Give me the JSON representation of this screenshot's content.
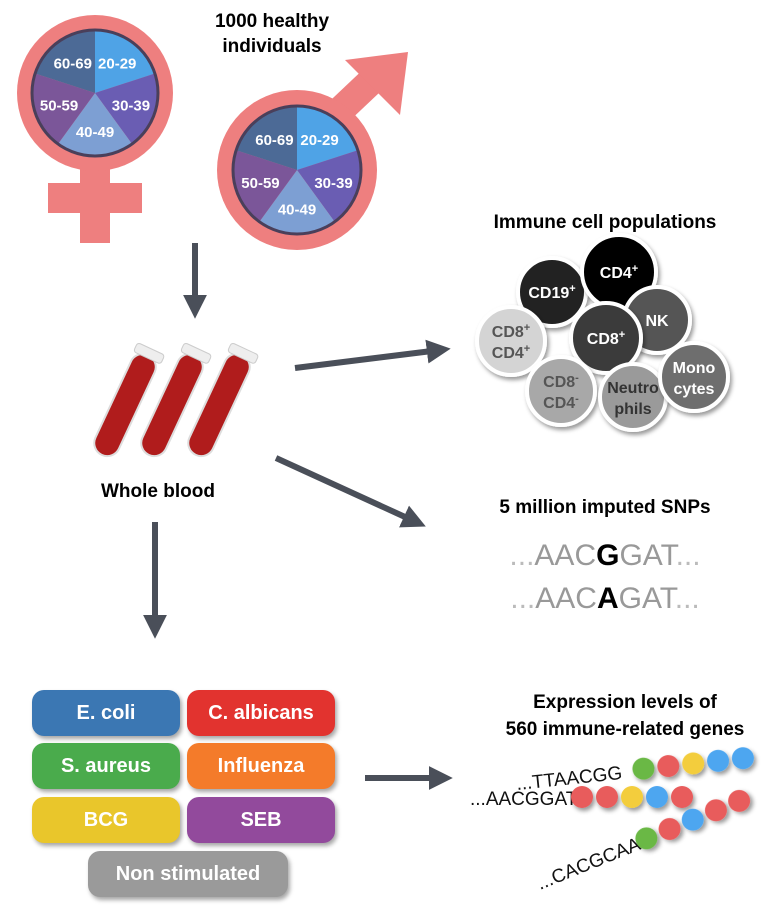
{
  "cohort": {
    "title_line1": "1000 healthy",
    "title_line2": "individuals",
    "age_groups": [
      "20-29",
      "30-39",
      "40-49",
      "50-59",
      "60-69"
    ],
    "age_colors": [
      "#4fa3e6",
      "#6a5db3",
      "#7d9fd3",
      "#7b5699",
      "#4c6a96"
    ],
    "symbol_color": "#ee7f7f"
  },
  "blood": {
    "label": "Whole blood",
    "tube_color": "#b01c1c"
  },
  "cells": {
    "title": "Immune cell populations",
    "items": [
      {
        "line1": "CD19",
        "sup1": "+",
        "line2": "",
        "sup2": "",
        "fill": "#222222",
        "text": "#ffffff"
      },
      {
        "line1": "CD4",
        "sup1": "+",
        "line2": "",
        "sup2": "",
        "fill": "#000000",
        "text": "#ffffff"
      },
      {
        "line1": "NK",
        "sup1": "",
        "line2": "",
        "sup2": "",
        "fill": "#555555",
        "text": "#ffffff"
      },
      {
        "line1": "CD8",
        "sup1": "+",
        "line2": "",
        "sup2": "",
        "fill": "#3a3a3a",
        "text": "#ffffff"
      },
      {
        "line1": "CD8",
        "sup1": "+",
        "line2": "CD4",
        "sup2": "+",
        "fill": "#d4d4d4",
        "text": "#555555"
      },
      {
        "line1": "CD8",
        "sup1": "-",
        "line2": "CD4",
        "sup2": "-",
        "fill": "#a8a8a8",
        "text": "#555555"
      },
      {
        "line1": "Neutro",
        "sup1": "",
        "line2": "phils",
        "sup2": "",
        "fill": "#9a9a9a",
        "text": "#333333"
      },
      {
        "line1": "Mono",
        "sup1": "",
        "line2": "cytes",
        "sup2": "",
        "fill": "#6e6e6e",
        "text": "#ffffff"
      }
    ]
  },
  "snps": {
    "title": "5 million imputed SNPs",
    "seq1": {
      "prefix": "AAC",
      "allele": "G",
      "suffix": "GAT"
    },
    "seq2": {
      "prefix": "AAC",
      "allele": "A",
      "suffix": "GAT"
    },
    "dots": "..."
  },
  "stimuli": [
    {
      "label": "E. coli",
      "color": "#3b77b3"
    },
    {
      "label": "C. albicans",
      "color": "#e2332f"
    },
    {
      "label": "S. aureus",
      "color": "#4aab4c"
    },
    {
      "label": "Influenza",
      "color": "#f47b2a"
    },
    {
      "label": "BCG",
      "color": "#e9c62b"
    },
    {
      "label": "SEB",
      "color": "#924a9c"
    },
    {
      "label": "Non stimulated",
      "color": "#9a9a9a"
    }
  ],
  "expression": {
    "title_line1": "Expression levels of",
    "title_line2": "560 immune-related genes",
    "reads": [
      {
        "seq": "...TTAACGG",
        "beads": [
          "#6ab845",
          "#e85c5c",
          "#f3cd3c",
          "#4da6f0",
          "#4da6f0"
        ]
      },
      {
        "seq": "...AACGGAT",
        "beads": [
          "#e85c5c",
          "#e85c5c",
          "#f3cd3c",
          "#4da6f0",
          "#e85c5c"
        ]
      },
      {
        "seq": "...CACGCAA",
        "beads": [
          "#6ab845",
          "#e85c5c",
          "#4da6f0",
          "#e85c5c",
          "#e85c5c"
        ]
      }
    ]
  },
  "arrow_color": "#4a4f59"
}
